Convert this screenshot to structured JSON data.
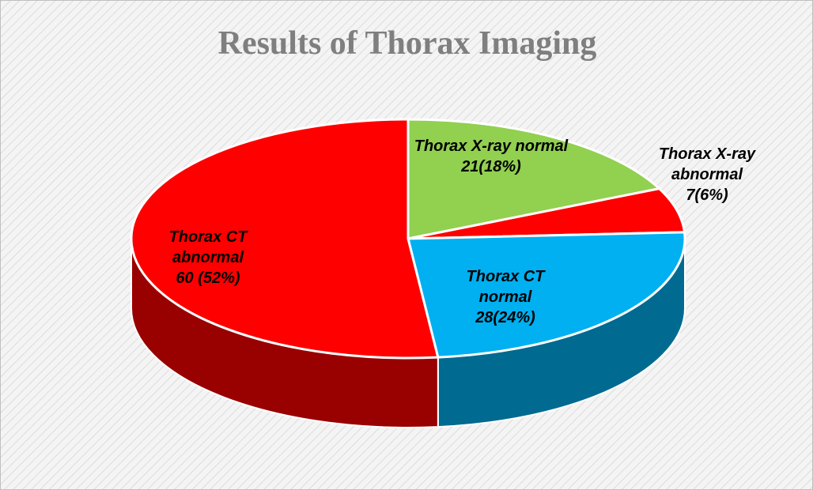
{
  "chart_data": {
    "type": "pie3d",
    "title": "Results of Thorax Imaging",
    "categories": [
      "Thorax X-ray normal",
      "Thorax X-ray abnormal",
      "Thorax CT normal",
      "Thorax CT abnormal"
    ],
    "values": [
      21,
      7,
      28,
      60
    ],
    "value_labels": [
      "21(18%)",
      "7(6%)",
      "28(24%)",
      "60 (52%)"
    ],
    "colors": [
      "#92d050",
      "#ff0000",
      "#00b0f0",
      "#ff0000"
    ]
  }
}
